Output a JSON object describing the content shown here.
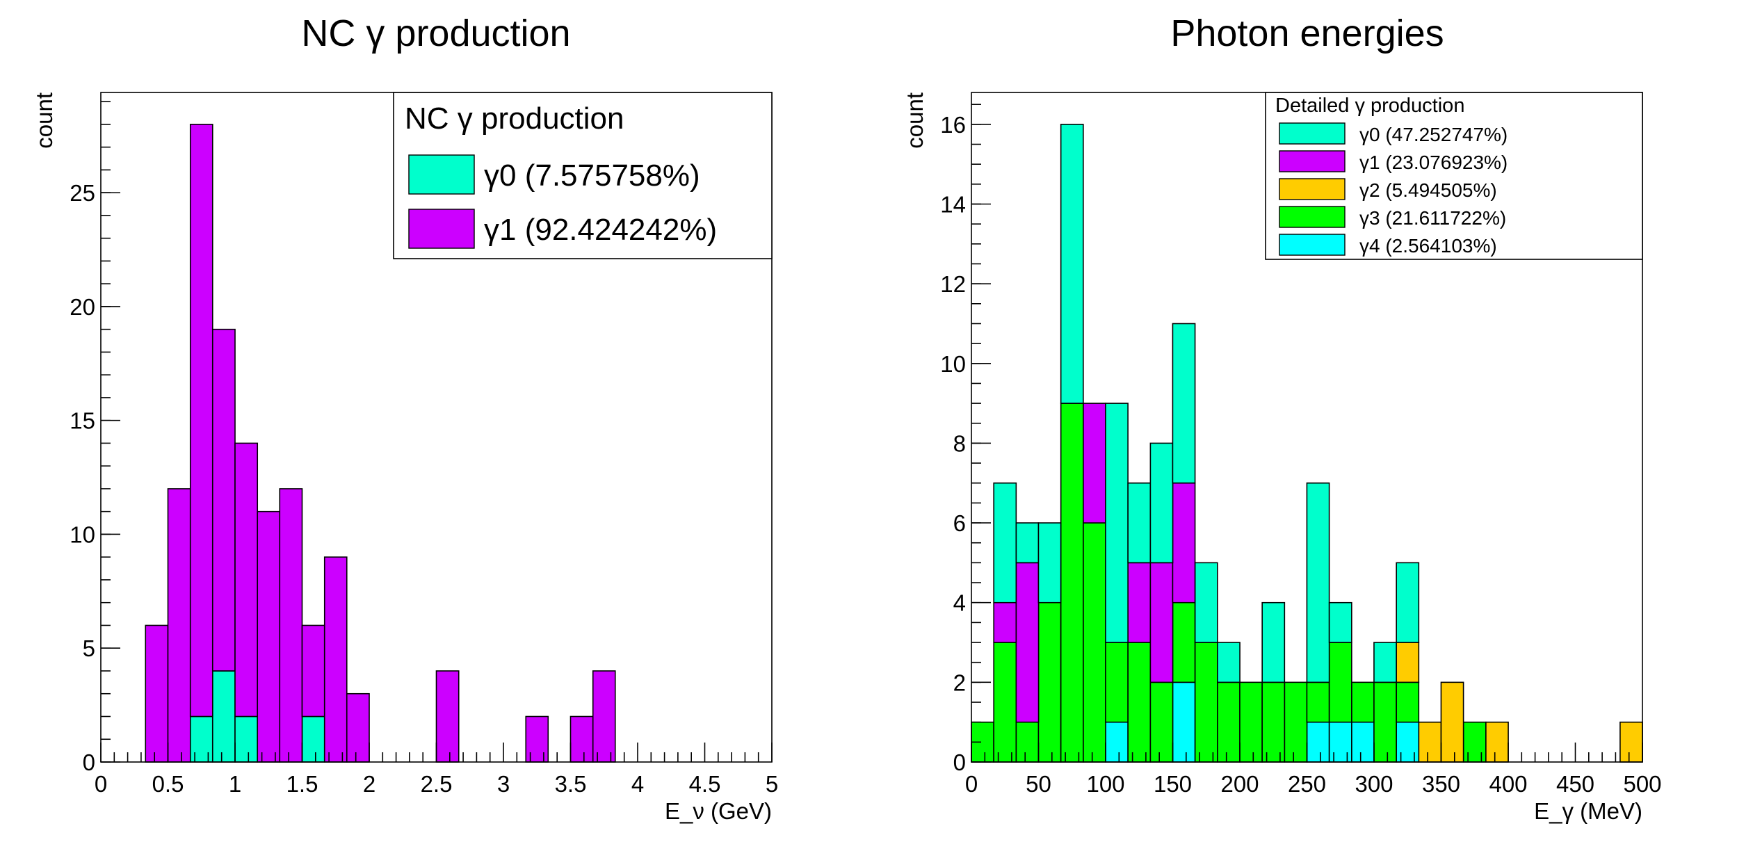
{
  "chart_data": [
    {
      "type": "bar",
      "stacked": true,
      "title": "NC γ production",
      "xlabel": "E_ν (GeV)",
      "ylabel": "count",
      "xlim": [
        0,
        5
      ],
      "ylim": [
        0,
        29.4
      ],
      "bin_width": 0.1667,
      "x_ticks": [
        0,
        0.5,
        1,
        1.5,
        2,
        2.5,
        3,
        3.5,
        4,
        4.5,
        5
      ],
      "x_tick_labels": [
        "0",
        "0.5",
        "1",
        "1.5",
        "2",
        "2.5",
        "3",
        "3.5",
        "4",
        "4.5",
        "5"
      ],
      "y_ticks": [
        0,
        5,
        10,
        15,
        20,
        25
      ],
      "y_tick_labels": [
        "0",
        "5",
        "10",
        "15",
        "20",
        "25"
      ],
      "bin_edges": [
        0.333,
        0.5,
        0.667,
        0.833,
        1.0,
        1.167,
        1.333,
        1.5,
        1.667,
        1.833,
        2.0,
        2.5,
        2.667,
        3.167,
        3.333,
        3.5,
        3.667,
        3.833
      ],
      "bins": [
        [
          0.333,
          0.5
        ],
        [
          0.5,
          0.667
        ],
        [
          0.667,
          0.833
        ],
        [
          0.833,
          1.0
        ],
        [
          1.0,
          1.167
        ],
        [
          1.167,
          1.333
        ],
        [
          1.333,
          1.5
        ],
        [
          1.5,
          1.667
        ],
        [
          1.667,
          1.833
        ],
        [
          1.833,
          2.0
        ],
        [
          2.5,
          2.667
        ],
        [
          3.167,
          3.333
        ],
        [
          3.5,
          3.667
        ],
        [
          3.667,
          3.833
        ]
      ],
      "series": [
        {
          "name": "γ0 (7.575758%)",
          "color": "#00ffcc",
          "values": [
            0,
            0,
            2,
            4,
            2,
            0,
            0,
            2,
            0,
            0,
            0,
            0,
            0,
            0
          ]
        },
        {
          "name": "γ1 (92.424242%)",
          "color": "#cc00ff",
          "values": [
            6,
            12,
            26,
            15,
            12,
            11,
            12,
            4,
            9,
            3,
            4,
            2,
            2,
            4
          ]
        }
      ],
      "legend": {
        "title": "NC γ production",
        "position": "top-right"
      }
    },
    {
      "type": "bar",
      "stacked": true,
      "title": "Photon energies",
      "xlabel": "E_γ (MeV)",
      "ylabel": "count",
      "xlim": [
        0,
        500
      ],
      "ylim": [
        0,
        16.8
      ],
      "bin_width": 16.667,
      "x_ticks": [
        0,
        50,
        100,
        150,
        200,
        250,
        300,
        350,
        400,
        450,
        500
      ],
      "x_tick_labels": [
        "0",
        "50",
        "100",
        "150",
        "200",
        "250",
        "300",
        "350",
        "400",
        "450",
        "500"
      ],
      "y_ticks": [
        0,
        2,
        4,
        6,
        8,
        10,
        12,
        14,
        16
      ],
      "y_tick_labels": [
        "0",
        "2",
        "4",
        "6",
        "8",
        "10",
        "12",
        "14",
        "16"
      ],
      "x": [
        8.3,
        25,
        41.7,
        58.3,
        75,
        91.7,
        108.3,
        125,
        141.7,
        158.3,
        175,
        191.7,
        208.3,
        225,
        241.7,
        258.3,
        275,
        291.7,
        308.3,
        325,
        341.7,
        358.3,
        375,
        391.7,
        408.3,
        425,
        441.7,
        458.3,
        475,
        491.7
      ],
      "series": [
        {
          "name": "γ4 (2.564103%)",
          "color": "#00ffff",
          "values": [
            0,
            0,
            0,
            0,
            0,
            0,
            1,
            0,
            0,
            2,
            0,
            0,
            0,
            0,
            0,
            1,
            1,
            1,
            0,
            1,
            0,
            0,
            0,
            0,
            0,
            0,
            0,
            0,
            0,
            0
          ]
        },
        {
          "name": "γ3 (21.611722%)",
          "color": "#00ff00",
          "values": [
            1,
            3,
            1,
            4,
            9,
            6,
            2,
            3,
            2,
            2,
            3,
            2,
            2,
            2,
            2,
            1,
            2,
            1,
            2,
            1,
            0,
            0,
            1,
            0,
            0,
            0,
            0,
            0,
            0,
            0
          ]
        },
        {
          "name": "γ2 (5.494505%)",
          "color": "#ffcc00",
          "values": [
            0,
            0,
            0,
            0,
            0,
            0,
            0,
            0,
            0,
            0,
            0,
            0,
            0,
            0,
            0,
            0,
            0,
            0,
            0,
            1,
            1,
            2,
            0,
            1,
            0,
            0,
            0,
            0,
            0,
            1
          ]
        },
        {
          "name": "γ1 (23.076923%)",
          "color": "#cc00ff",
          "values": [
            0,
            1,
            4,
            0,
            0,
            3,
            0,
            2,
            3,
            3,
            0,
            0,
            0,
            0,
            0,
            0,
            0,
            0,
            0,
            0,
            0,
            0,
            0,
            0,
            0,
            0,
            0,
            0,
            0,
            0
          ]
        },
        {
          "name": "γ0 (47.252747%)",
          "color": "#00ffcc",
          "values": [
            0,
            3,
            1,
            2,
            7,
            0,
            6,
            2,
            3,
            4,
            2,
            1,
            0,
            2,
            0,
            5,
            1,
            0,
            1,
            2,
            0,
            0,
            0,
            0,
            0,
            0,
            0,
            0,
            0,
            0
          ]
        }
      ],
      "legend_order": [
        "γ0 (47.252747%)",
        "γ1 (23.076923%)",
        "γ2 (5.494505%)",
        "γ3 (21.611722%)",
        "γ4 (2.564103%)"
      ],
      "legend": {
        "title": "Detailed γ production",
        "position": "top-right"
      }
    }
  ]
}
